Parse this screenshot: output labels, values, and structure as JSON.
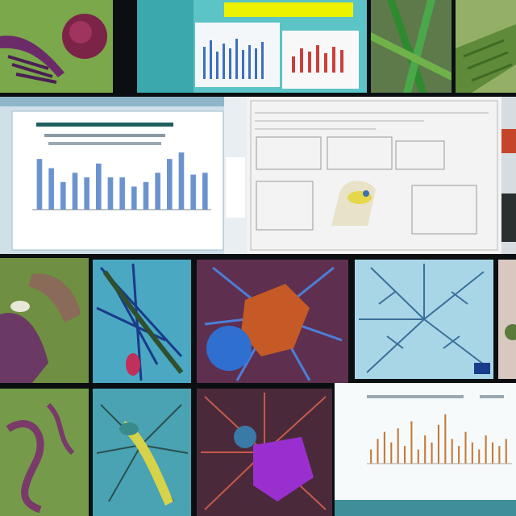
{
  "collage": {
    "tiles": [
      {
        "kind": "micro-plant",
        "label": ""
      },
      {
        "kind": "chart-screen",
        "label": ""
      },
      {
        "kind": "leaf-closeup",
        "label": ""
      },
      {
        "kind": "big-chart-screen",
        "label": ""
      },
      {
        "kind": "document-screen",
        "label": ""
      },
      {
        "kind": "green-tissue",
        "label": ""
      },
      {
        "kind": "blue-tissue",
        "label": ""
      },
      {
        "kind": "neuron-cell",
        "label": ""
      },
      {
        "kind": "blue-branches",
        "label": ""
      },
      {
        "kind": "green-worm",
        "label": ""
      },
      {
        "kind": "teal-creature",
        "label": ""
      },
      {
        "kind": "purple-cell",
        "label": ""
      },
      {
        "kind": "spike-chart-screen",
        "label": ""
      }
    ],
    "header_chip": ""
  },
  "chart_data": [
    {
      "type": "bar",
      "categories": [
        "",
        "",
        "",
        "",
        "",
        "",
        "",
        "",
        "",
        "",
        "",
        "",
        "",
        "",
        ""
      ],
      "values": [
        55,
        45,
        30,
        40,
        35,
        50,
        35,
        35,
        25,
        30,
        40,
        55,
        62,
        38,
        40
      ],
      "title": "",
      "xlabel": "",
      "ylabel": "",
      "ylim": [
        0,
        70
      ]
    },
    {
      "type": "bar",
      "categories": [
        "",
        "",
        "",
        "",
        "",
        "",
        "",
        "",
        "",
        "",
        "",
        "",
        "",
        "",
        "",
        "",
        "",
        "",
        "",
        "",
        ""
      ],
      "values": [
        20,
        35,
        45,
        30,
        50,
        25,
        60,
        20,
        40,
        30,
        55,
        70,
        35,
        25,
        45,
        30,
        20,
        40,
        30,
        25,
        35
      ],
      "title": "",
      "xlabel": "",
      "ylabel": "",
      "ylim": [
        0,
        80
      ]
    }
  ]
}
